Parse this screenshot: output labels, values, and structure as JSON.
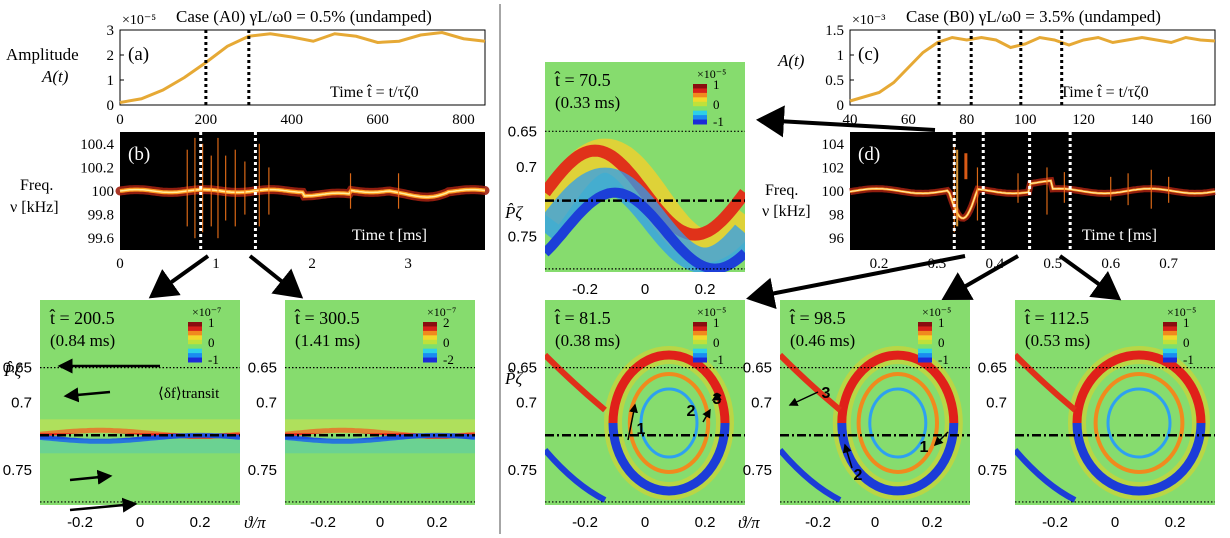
{
  "colors": {
    "amplitude_line": "#e6a935",
    "marker_line": "#000000",
    "spectrum_marker": "#ffffff",
    "separator": "#888888"
  },
  "colormap": [
    "#1c2bd8",
    "#1a8cf0",
    "#2ed0e8",
    "#7fe06a",
    "#bfe13a",
    "#f2d92a",
    "#f08a1e",
    "#d8201a",
    "#8a0d10"
  ],
  "left": {
    "case_title": "Case (A0) γL/ω0 = 0.5% (undamped)",
    "amplitude_label_1": "Amplitude",
    "amplitude_label_2": "A(t)",
    "panel_a_letter": "(a)",
    "panel_b_letter": "(b)",
    "time_hat_label": "Time t̂ = t/τζ0",
    "time_label": "Time t [ms]",
    "freq_label_1": "Freq.",
    "freq_label_2": "ν [kHz]",
    "scale_exp": "×10⁻⁵",
    "amp_yticks": [
      "3",
      "2",
      "1",
      "0"
    ],
    "amp_xticks": [
      "0",
      "200",
      "400",
      "600",
      "800"
    ],
    "freq_yticks": [
      "100.4",
      "100.2",
      "100",
      "99.8",
      "99.6"
    ],
    "freq_xticks": [
      "0",
      "1",
      "2",
      "3"
    ]
  },
  "right": {
    "case_title": "Case (B0) γL/ω0 = 3.5% (undamped)",
    "amplitude_label": "A(t)",
    "panel_c_letter": "(c)",
    "panel_d_letter": "(d)",
    "time_hat_label": "Time t̂ = t/τζ0",
    "time_label": "Time t [ms]",
    "freq_label_1": "Freq.",
    "freq_label_2": "ν [kHz]",
    "scale_exp": "×10⁻³",
    "amp_yticks": [
      "1.5",
      "1",
      "0.5",
      "0"
    ],
    "amp_xticks": [
      "40",
      "60",
      "80",
      "100",
      "120",
      "140",
      "160"
    ],
    "freq_yticks": [
      "104",
      "102",
      "100",
      "98",
      "96"
    ],
    "freq_xticks": [
      "0.2",
      "0.3",
      "0.4",
      "0.5",
      "0.6",
      "0.7"
    ]
  },
  "phase_panels": {
    "p_axis_label": "P̂ζ",
    "theta_axis_label": "ϑ/π",
    "p_ticks": [
      "0.65",
      "0.7",
      "0.75"
    ],
    "theta_ticks": [
      "-0.2",
      "0",
      "0.2"
    ],
    "transit_label": "⟨δf⟩transit",
    "panels": [
      {
        "id": "a1",
        "that": "t̂ = 200.5",
        "ms": "(0.84 ms)",
        "cexp": "×10⁻⁷",
        "cticks": [
          "1",
          "0",
          "-1"
        ]
      },
      {
        "id": "a2",
        "that": "t̂ = 300.5",
        "ms": "(1.41 ms)",
        "cexp": "×10⁻⁷",
        "cticks": [
          "2",
          "0",
          "-2"
        ]
      },
      {
        "id": "b0",
        "that": "t̂ = 70.5",
        "ms": "(0.33 ms)",
        "cexp": "×10⁻⁵",
        "cticks": [
          "1",
          "0",
          "-1"
        ]
      },
      {
        "id": "b1",
        "that": "t̂ = 81.5",
        "ms": "(0.38 ms)",
        "cexp": "×10⁻⁵",
        "cticks": [
          "1",
          "0",
          "-1"
        ],
        "arrows": [
          "1",
          "2",
          "3"
        ]
      },
      {
        "id": "b2",
        "that": "t̂ = 98.5",
        "ms": "(0.46 ms)",
        "cexp": "×10⁻⁵",
        "cticks": [
          "1",
          "0",
          "-1"
        ],
        "arrows": [
          "3",
          "2",
          "1"
        ]
      },
      {
        "id": "b3",
        "that": "t̂ = 112.5",
        "ms": "(0.53 ms)",
        "cexp": "×10⁻⁵",
        "cticks": [
          "1",
          "0",
          "-1"
        ]
      }
    ]
  },
  "chart_data": [
    {
      "type": "line",
      "title": "Case (A0) γL/ω0 = 0.5% (undamped)",
      "ylabel": "Amplitude A(t)",
      "xlabel": "Time t̂ = t/τζ0",
      "xlim": [
        0,
        850
      ],
      "ylim": [
        0,
        3
      ],
      "y_scale": "×10⁻⁵",
      "x": [
        0,
        50,
        100,
        150,
        200,
        250,
        300,
        350,
        400,
        450,
        500,
        550,
        600,
        650,
        700,
        750,
        800,
        850
      ],
      "y": [
        0.1,
        0.25,
        0.6,
        1.1,
        1.7,
        2.35,
        2.75,
        2.85,
        2.72,
        2.55,
        2.85,
        2.75,
        2.5,
        2.55,
        2.8,
        2.9,
        2.65,
        2.55
      ],
      "markers_x": [
        200,
        300
      ]
    },
    {
      "type": "line",
      "title": "Case (B0) γL/ω0 = 3.5% (undamped)",
      "ylabel": "A(t)",
      "xlabel": "Time t̂ = t/τζ0",
      "xlim": [
        40,
        165
      ],
      "ylim": [
        0,
        1.5
      ],
      "y_scale": "×10⁻³",
      "x": [
        40,
        50,
        55,
        60,
        65,
        70,
        75,
        80,
        85,
        90,
        95,
        100,
        105,
        110,
        115,
        120,
        125,
        130,
        135,
        140,
        145,
        150,
        155,
        160,
        165
      ],
      "y": [
        0.08,
        0.25,
        0.45,
        0.75,
        1.05,
        1.25,
        1.35,
        1.3,
        1.35,
        1.3,
        1.15,
        1.22,
        1.35,
        1.3,
        1.2,
        1.3,
        1.35,
        1.25,
        1.3,
        1.35,
        1.3,
        1.25,
        1.35,
        1.3,
        1.28
      ],
      "markers_x": [
        70.5,
        81.5,
        98.5,
        112.5
      ]
    },
    {
      "type": "heatmap",
      "title": "",
      "ylabel": "Freq. ν [kHz]",
      "xlabel": "Time t [ms]",
      "xlim": [
        0,
        3.8
      ],
      "ylim": [
        99.5,
        100.5
      ],
      "ridge_kHz": 100.0,
      "markers_x": [
        0.84,
        1.41
      ]
    },
    {
      "type": "heatmap",
      "title": "",
      "ylabel": "Freq. ν [kHz]",
      "xlabel": "Time t [ms]",
      "xlim": [
        0.15,
        0.78
      ],
      "ylim": [
        95,
        105
      ],
      "ridge_kHz": 100.0,
      "markers_x": [
        0.33,
        0.38,
        0.46,
        0.53
      ]
    }
  ]
}
